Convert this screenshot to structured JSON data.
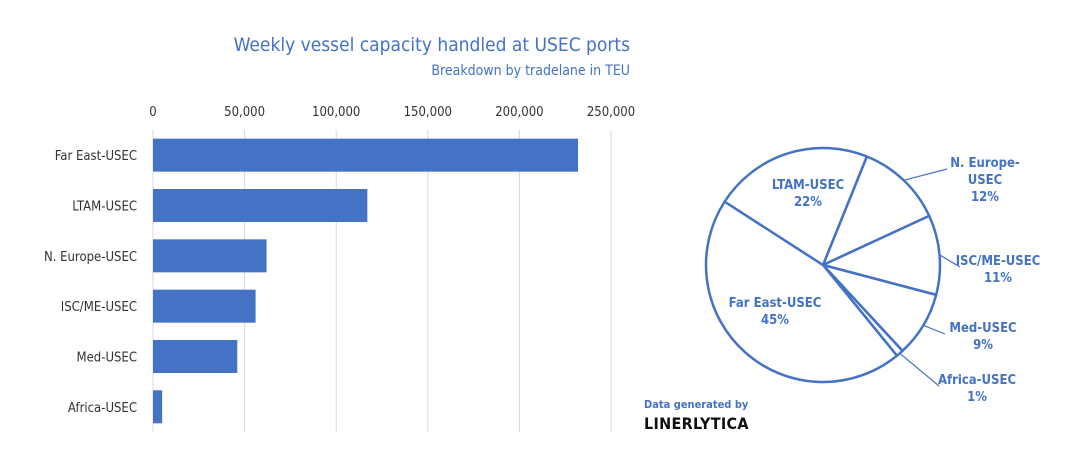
{
  "chart_data": [
    {
      "type": "bar",
      "orientation": "horizontal",
      "title": "Weekly vessel capacity handled at USEC ports",
      "subtitle": "Breakdown by tradelane in TEU",
      "categories": [
        "Far East-USEC",
        "LTAM-USEC",
        "N. Europe-USEC",
        "ISC/ME-USEC",
        "Med-USEC",
        "Africa-USEC"
      ],
      "values": [
        232000,
        117000,
        62000,
        56000,
        46000,
        5000
      ],
      "xlim": [
        0,
        250000
      ],
      "xticks": [
        "0",
        "50,000",
        "100,000",
        "150,000",
        "200,000",
        "250,000"
      ],
      "axis_position": "top",
      "grid": "vertical",
      "color": "#4472c4"
    },
    {
      "type": "pie",
      "slices": [
        {
          "label": "N. Europe-USEC",
          "value": 12,
          "pct_label": "12%"
        },
        {
          "label": "ISC/ME-USEC",
          "value": 11,
          "pct_label": "11%"
        },
        {
          "label": "Med-USEC",
          "value": 9,
          "pct_label": "9%"
        },
        {
          "label": "Africa-USEC",
          "value": 1,
          "pct_label": "1%"
        },
        {
          "label": "Far East-USEC",
          "value": 45,
          "pct_label": "45%"
        },
        {
          "label": "LTAM-USEC",
          "value": 22,
          "pct_label": "22%"
        }
      ],
      "color": "#4472c4"
    }
  ],
  "credit": {
    "line": "Data generated by",
    "logo": "LINERLYTICA"
  }
}
